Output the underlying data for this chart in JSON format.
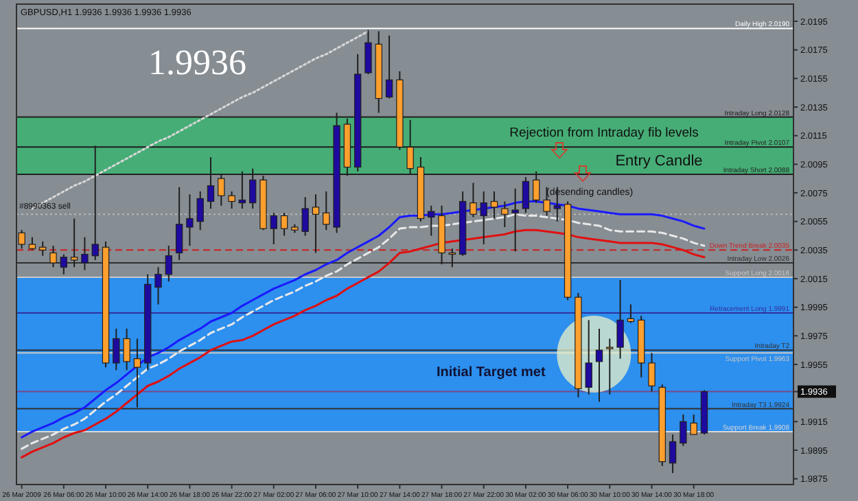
{
  "chart_data": {
    "type": "candlestick",
    "title": "GBPUSD,H1 1.9936 1.9936 1.9936 1.9936",
    "categories": [
      "26 Mar 2009",
      null,
      null,
      null,
      "26 Mar 06:00",
      null,
      null,
      null,
      "26 Mar 10:00",
      null,
      null,
      null,
      "26 Mar 14:00",
      null,
      null,
      null,
      "26 Mar 18:00",
      null,
      null,
      null,
      "26 Mar 22:00",
      null,
      null,
      null,
      "27 Mar 02:00",
      null,
      null,
      null,
      "27 Mar 06:00",
      null,
      null,
      null,
      "27 Mar 10:00",
      null,
      null,
      null,
      "27 Mar 14:00",
      null,
      null,
      null,
      "27 Mar 18:00",
      null,
      null,
      null,
      "27 Mar 22:00",
      null,
      null,
      null,
      "30 Mar 02:00",
      null,
      null,
      null,
      "30 Mar 06:00",
      null,
      null,
      null,
      "30 Mar 10:00",
      null,
      null,
      null,
      "30 Mar 14:00",
      null,
      null,
      null,
      "30 Mar 18:00",
      null
    ],
    "ohlc": [
      [
        2.0047,
        2.0049,
        2.0036,
        2.0039
      ],
      [
        2.0039,
        2.0044,
        2.0035,
        2.0036
      ],
      [
        2.0037,
        2.0041,
        2.0031,
        2.0035
      ],
      [
        2.0033,
        2.0038,
        2.0023,
        2.0026
      ],
      [
        2.0023,
        2.0032,
        2.0018,
        2.003
      ],
      [
        2.003,
        2.0057,
        2.0023,
        2.0028
      ],
      [
        2.0026,
        2.0044,
        2.0021,
        2.0032
      ],
      [
        2.0031,
        2.0108,
        2.0028,
        2.0039
      ],
      [
        2.0037,
        2.0041,
        1.9953,
        1.9956
      ],
      [
        1.9956,
        1.998,
        1.9951,
        1.9973
      ],
      [
        1.9973,
        1.998,
        1.9951,
        1.9957
      ],
      [
        1.9959,
        1.9973,
        1.9925,
        1.9953
      ],
      [
        1.9956,
        2.0018,
        1.9951,
        2.0011
      ],
      [
        2.0009,
        2.0023,
        1.9997,
        2.0018
      ],
      [
        2.0018,
        2.0038,
        2.0013,
        2.0031
      ],
      [
        2.0033,
        2.0079,
        2.0028,
        2.0053
      ],
      [
        2.0051,
        2.0074,
        2.0038,
        2.0057
      ],
      [
        2.0055,
        2.0076,
        2.0049,
        2.0071
      ],
      [
        2.0069,
        2.01,
        2.0064,
        2.008
      ],
      [
        2.0085,
        2.0088,
        2.0066,
        2.0073
      ],
      [
        2.0073,
        2.0076,
        2.0064,
        2.0069
      ],
      [
        2.0068,
        2.009,
        2.0064,
        2.007
      ],
      [
        2.0068,
        2.0092,
        2.0064,
        2.0084
      ],
      [
        2.0084,
        2.0087,
        2.0049,
        2.005
      ],
      [
        2.005,
        2.0061,
        2.0039,
        2.0059
      ],
      [
        2.0059,
        2.0061,
        2.0045,
        2.005
      ],
      [
        2.0051,
        2.0053,
        2.0047,
        2.0049
      ],
      [
        2.0048,
        2.0072,
        2.0045,
        2.0064
      ],
      [
        2.0065,
        2.0074,
        2.0033,
        2.006
      ],
      [
        2.0061,
        2.0076,
        2.0049,
        2.0053
      ],
      [
        2.0051,
        2.0131,
        2.0047,
        2.0122
      ],
      [
        2.0123,
        2.0127,
        2.0087,
        2.0093
      ],
      [
        2.0093,
        2.0172,
        2.009,
        2.0158
      ],
      [
        2.0159,
        2.0189,
        2.0158,
        2.018
      ],
      [
        2.0179,
        2.0188,
        2.0131,
        2.0141
      ],
      [
        2.0142,
        2.0185,
        2.0141,
        2.0154
      ],
      [
        2.0154,
        2.016,
        2.0105,
        2.0107
      ],
      [
        2.0107,
        2.0126,
        2.0088,
        2.0092
      ],
      [
        2.0093,
        2.01,
        2.0055,
        2.0057
      ],
      [
        2.0058,
        2.0066,
        2.0045,
        2.0062
      ],
      [
        2.0059,
        2.0066,
        2.0025,
        2.0033
      ],
      [
        2.0033,
        2.0036,
        2.0023,
        2.0033
      ],
      [
        2.0032,
        2.0076,
        2.0031,
        2.0069
      ],
      [
        2.0068,
        2.0082,
        2.0058,
        2.006
      ],
      [
        2.0059,
        2.0076,
        2.0039,
        2.0068
      ],
      [
        2.0069,
        2.0076,
        2.0057,
        2.0065
      ],
      [
        2.0064,
        2.0069,
        2.0051,
        2.006
      ],
      [
        2.0061,
        2.0078,
        2.0034,
        2.0063
      ],
      [
        2.0064,
        2.0086,
        2.0061,
        2.0083
      ],
      [
        2.0084,
        2.009,
        2.0068,
        2.007
      ],
      [
        2.007,
        2.0079,
        2.0059,
        2.0062
      ],
      [
        2.0064,
        2.0079,
        2.0055,
        2.0066
      ],
      [
        2.0067,
        2.0069,
        2.0,
        2.0002
      ],
      [
        2.0002,
        2.0005,
        1.9932,
        1.9938
      ],
      [
        1.9939,
        1.9986,
        1.9934,
        1.9956
      ],
      [
        1.9957,
        1.998,
        1.9929,
        1.9965
      ],
      [
        1.9967,
        1.9973,
        1.9934,
        1.9967
      ],
      [
        1.9967,
        2.0014,
        1.9959,
        1.9986
      ],
      [
        1.9987,
        1.9997,
        1.9984,
        1.9985
      ],
      [
        1.9986,
        1.9989,
        1.9946,
        1.9956
      ],
      [
        1.9956,
        1.9963,
        1.9936,
        1.994
      ],
      [
        1.9939,
        1.9941,
        1.9884,
        1.9887
      ],
      [
        1.9886,
        1.9906,
        1.9879,
        1.9901
      ],
      [
        1.99,
        1.992,
        1.9898,
        1.9915
      ],
      [
        1.9914,
        1.992,
        1.9906,
        1.9906
      ],
      [
        1.9907,
        1.9937,
        1.9906,
        1.9936
      ]
    ],
    "colors": [
      "#ff9f2e",
      "#ff9f2e",
      "#ff9f2e",
      "#ff9f2e",
      "#1e0a9e",
      "#ff9f2e",
      "#1e0a9e",
      "#1e0a9e",
      "#ff9f2e",
      "#1e0a9e",
      "#ff9f2e",
      "#ff9f2e",
      "#1e0a9e",
      "#1e0a9e",
      "#1e0a9e",
      "#1e0a9e",
      "#1e0a9e",
      "#1e0a9e",
      "#1e0a9e",
      "#ff9f2e",
      "#ff9f2e",
      "#1e0a9e",
      "#1e0a9e",
      "#ff9f2e",
      "#1e0a9e",
      "#ff9f2e",
      "#ff9f2e",
      "#1e0a9e",
      "#ff9f2e",
      "#ff9f2e",
      "#1e0a9e",
      "#ff9f2e",
      "#1e0a9e",
      "#1e0a9e",
      "#ff9f2e",
      "#1e0a9e",
      "#ff9f2e",
      "#ff9f2e",
      "#ff9f2e",
      "#1e0a9e",
      "#ff9f2e",
      "#ff9f2e",
      "#1e0a9e",
      "#ff9f2e",
      "#1e0a9e",
      "#ff9f2e",
      "#ff9f2e",
      "#1e0a9e",
      "#1e0a9e",
      "#ff9f2e",
      "#ff9f2e",
      "#1e0a9e",
      "#ff9f2e",
      "#ff9f2e",
      "#1e0a9e",
      "#1e0a9e",
      "#ff9f2e",
      "#1e0a9e",
      "#ff9f2e",
      "#ff9f2e",
      "#ff9f2e",
      "#ff9f2e",
      "#1e0a9e",
      "#1e0a9e",
      "#ff9f2e",
      "#1e0a9e"
    ],
    "series": [
      {
        "type": "line",
        "color": "#1a1aff",
        "line_style": "solid",
        "values": [
          1.9904,
          1.9908,
          1.9911,
          1.9914,
          1.9918,
          1.9921,
          1.9925,
          1.9931,
          1.9937,
          1.9942,
          1.9948,
          1.9954,
          1.996,
          1.9963,
          1.9967,
          1.9972,
          1.9976,
          1.998,
          1.9985,
          1.9988,
          1.9991,
          1.9996,
          2.0,
          2.0004,
          2.0008,
          2.0011,
          2.0014,
          2.0018,
          2.0021,
          2.0025,
          2.0028,
          2.0033,
          2.0037,
          2.0041,
          2.0045,
          2.0051,
          2.0058,
          2.0059,
          2.0059,
          2.006,
          2.006,
          2.0061,
          2.0062,
          2.0063,
          2.0064,
          2.0065,
          2.0066,
          2.0068,
          2.0069,
          2.0069,
          2.0068,
          2.0067,
          2.0066,
          2.0064,
          2.0063,
          2.0062,
          2.0061,
          2.006,
          2.006,
          2.006,
          2.006,
          2.0059,
          2.0057,
          2.0055,
          2.0052,
          2.005
        ]
      },
      {
        "type": "line",
        "color": "#e8e8e8",
        "line_style": "dashed",
        "values": [
          1.9896,
          1.99,
          1.9903,
          1.9906,
          1.991,
          1.9913,
          1.9917,
          1.9923,
          1.9929,
          1.9934,
          1.994,
          1.9946,
          1.9952,
          1.9955,
          1.9959,
          1.9964,
          1.9968,
          1.9972,
          1.9977,
          1.998,
          1.9983,
          1.9988,
          1.9992,
          1.9996,
          2.0,
          2.0003,
          2.0006,
          2.001,
          2.0013,
          2.0017,
          2.002,
          2.0025,
          2.0029,
          2.0033,
          2.0037,
          2.0043,
          2.005,
          2.0051,
          2.0051,
          2.0052,
          2.0052,
          2.0053,
          2.0054,
          2.0055,
          2.0056,
          2.0057,
          2.0058,
          2.006,
          2.0059,
          2.0059,
          2.0058,
          2.0057,
          2.0056,
          2.0054,
          2.0053,
          2.0052,
          2.0049,
          2.0048,
          2.0048,
          2.0048,
          2.0048,
          2.0047,
          2.0045,
          2.0043,
          2.004,
          2.0038
        ]
      },
      {
        "type": "line",
        "color": "#e01010",
        "line_style": "solid",
        "values": [
          1.989,
          1.9894,
          1.9897,
          1.99,
          1.9904,
          1.9907,
          1.9909,
          1.9913,
          1.9917,
          1.9922,
          1.9928,
          1.9934,
          1.994,
          1.9943,
          1.9947,
          1.9952,
          1.9956,
          1.996,
          1.9965,
          1.9968,
          1.9971,
          1.9972,
          1.9975,
          1.9979,
          1.9983,
          1.9986,
          1.9989,
          1.9993,
          1.9996,
          2.0,
          2.0003,
          2.0008,
          2.0012,
          2.0016,
          2.002,
          2.0026,
          2.0033,
          2.0034,
          2.0036,
          2.0038,
          2.004,
          2.0041,
          2.0042,
          2.0043,
          2.0044,
          2.0045,
          2.0046,
          2.0048,
          2.0049,
          2.0049,
          2.0048,
          2.0047,
          2.0046,
          2.0044,
          2.0043,
          2.0042,
          2.0041,
          2.004,
          2.004,
          2.004,
          2.004,
          2.0039,
          2.0037,
          2.0035,
          2.0032,
          2.003
        ]
      },
      {
        "type": "line",
        "color": "#d8d8d8",
        "line_style": "dotted",
        "values": [
          null,
          2.0064,
          2.0068,
          2.0072,
          2.0076,
          2.008,
          2.0083,
          2.0087,
          2.0091,
          2.0095,
          2.0099,
          2.0103,
          2.0107,
          2.0111,
          2.0114,
          2.0118,
          2.0122,
          2.0126,
          2.013,
          2.0134,
          2.0138,
          2.0142,
          2.0145,
          2.0149,
          2.0153,
          2.0157,
          2.0161,
          2.0165,
          2.0169,
          2.0172,
          2.0176,
          2.018,
          2.0184,
          2.0188,
          null,
          null,
          null,
          null,
          null,
          null,
          null,
          null,
          null,
          null,
          null,
          null,
          null,
          null,
          null,
          null,
          null,
          null,
          null,
          null,
          null,
          null,
          null,
          null,
          null,
          null,
          null,
          null,
          null,
          null,
          null,
          null
        ]
      }
    ],
    "bands": [
      {
        "axis": "y",
        "from": 1.9908,
        "to": 2.0016,
        "color": "#1e90ff"
      },
      {
        "axis": "y",
        "from": 2.0107,
        "to": 2.0128,
        "label": "Rejection from Intraday fib levels",
        "color": "#3cb371"
      },
      {
        "axis": "y",
        "from": 2.0088,
        "to": 2.0107,
        "label": "Entry Candle",
        "color": "#3cb371"
      }
    ],
    "ref_lines": [
      {
        "axis": "y",
        "value": 2.019,
        "label": "Daily High 2.0190",
        "color": "#ffffff",
        "line_style": "solid"
      },
      {
        "axis": "y",
        "value": 2.0128,
        "label": "Intraday Long 2.0128",
        "color": "#202020",
        "line_style": "solid"
      },
      {
        "axis": "y",
        "value": 2.0107,
        "label": "Intraday Pivot 2.0107",
        "color": "#202020",
        "line_style": "solid"
      },
      {
        "axis": "y",
        "value": 2.0088,
        "label": "Intraday Short 2.0088",
        "color": "#202020",
        "line_style": "solid"
      },
      {
        "axis": "y",
        "value": 2.006,
        "color": "#b8b8b8",
        "line_style": "dotted"
      },
      {
        "axis": "y",
        "value": 2.0035,
        "label": "Down Trend Break 2.0035",
        "color": "#cc2020",
        "line_style": "dashed"
      },
      {
        "axis": "y",
        "value": 2.0026,
        "label": "Intraday Low 2.0026",
        "color": "#303030",
        "line_style": "solid"
      },
      {
        "axis": "y",
        "value": 2.0016,
        "label": "Support Long 2.0016",
        "color": "#c8c8c8",
        "line_style": "solid"
      },
      {
        "axis": "y",
        "value": 1.9991,
        "label": "Retracement Long 1.9991",
        "color": "#3030a0",
        "line_style": "solid"
      },
      {
        "axis": "y",
        "value": 1.9965,
        "label": "Intraday T2",
        "color": "#303030",
        "line_style": "solid"
      },
      {
        "axis": "y",
        "value": 1.9963,
        "label": "Support Pivot 1.9963",
        "color": "#c8c8c8",
        "line_style": "solid"
      },
      {
        "axis": "y",
        "value": 1.9936,
        "color": "#7a4a8a",
        "line_style": "solid"
      },
      {
        "axis": "y",
        "value": 1.9924,
        "label": "Intraday T3 1.9924",
        "color": "#303030",
        "line_style": "solid"
      },
      {
        "axis": "y",
        "value": 1.9908,
        "label": "Support Break 1.9908",
        "color": "#d8d8d8",
        "line_style": "solid"
      }
    ],
    "annotations": [
      "1.9936",
      "#8990363 sell",
      "(desending candles)",
      "Initial Target met"
    ],
    "ylim": [
      1.9871,
      2.0207
    ],
    "yticks": [
      2.0195,
      2.0175,
      2.0155,
      2.0135,
      2.0115,
      2.0095,
      2.0075,
      2.0055,
      2.0035,
      2.0015,
      1.9995,
      1.9975,
      1.9955,
      1.9936,
      1.9915,
      1.9895,
      1.9875
    ]
  }
}
